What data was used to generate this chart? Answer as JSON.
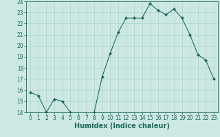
{
  "x": [
    0,
    1,
    2,
    3,
    4,
    5,
    6,
    7,
    8,
    9,
    10,
    11,
    12,
    13,
    14,
    15,
    16,
    17,
    18,
    19,
    20,
    21,
    22,
    23
  ],
  "y": [
    15.8,
    15.5,
    14.0,
    15.2,
    15.0,
    14.0,
    13.8,
    13.8,
    14.0,
    17.2,
    19.3,
    21.2,
    22.5,
    22.5,
    22.5,
    23.8,
    23.2,
    22.8,
    23.3,
    22.5,
    21.0,
    19.2,
    18.7,
    17.0
  ],
  "xlabel": "Humidex (Indice chaleur)",
  "ylim": [
    14,
    24
  ],
  "yticks": [
    14,
    15,
    16,
    17,
    18,
    19,
    20,
    21,
    22,
    23,
    24
  ],
  "xlim": [
    -0.5,
    23.5
  ],
  "xticks": [
    0,
    1,
    2,
    3,
    4,
    5,
    6,
    7,
    8,
    9,
    10,
    11,
    12,
    13,
    14,
    15,
    16,
    17,
    18,
    19,
    20,
    21,
    22,
    23
  ],
  "line_color": "#1a6b5a",
  "marker": "D",
  "marker_size": 2,
  "bg_color": "#cde8e4",
  "grid_color": "#b0d8d2",
  "tick_fontsize": 5.5,
  "label_fontsize": 7
}
